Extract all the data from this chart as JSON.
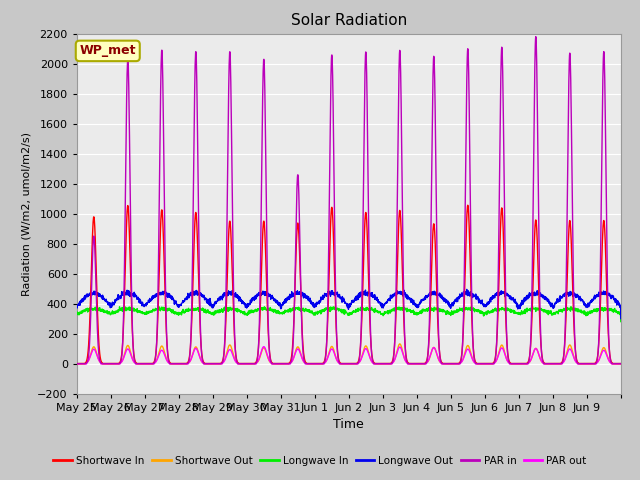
{
  "title": "Solar Radiation",
  "ylabel": "Radiation (W/m2, umol/m2/s)",
  "xlabel": "Time",
  "ylim": [
    -200,
    2200
  ],
  "yticks": [
    -200,
    0,
    200,
    400,
    600,
    800,
    1000,
    1200,
    1400,
    1600,
    1800,
    2000,
    2200
  ],
  "date_labels": [
    "May 25",
    "May 26",
    "May 27",
    "May 28",
    "May 29",
    "May 30",
    "May 31",
    "Jun 1",
    "Jun 2",
    "Jun 3",
    "Jun 4",
    "Jun 5",
    "Jun 6",
    "Jun 7",
    "Jun 8",
    "Jun 9"
  ],
  "station_label": "WP_met",
  "colors": {
    "shortwave_in": "#FF0000",
    "shortwave_out": "#FFA500",
    "longwave_in": "#00EE00",
    "longwave_out": "#0000EE",
    "par_in": "#BB00BB",
    "par_out": "#FF00FF"
  },
  "legend": [
    {
      "label": "Shortwave In",
      "color": "#FF0000"
    },
    {
      "label": "Shortwave Out",
      "color": "#FFA500"
    },
    {
      "label": "Longwave In",
      "color": "#00EE00"
    },
    {
      "label": "Longwave Out",
      "color": "#0000EE"
    },
    {
      "label": "PAR in",
      "color": "#BB00BB"
    },
    {
      "label": "PAR out",
      "color": "#FF00FF"
    }
  ],
  "fig_bg_color": "#C8C8C8",
  "plot_bg_color": "#EBEBEB",
  "n_days": 16,
  "points_per_day": 144
}
